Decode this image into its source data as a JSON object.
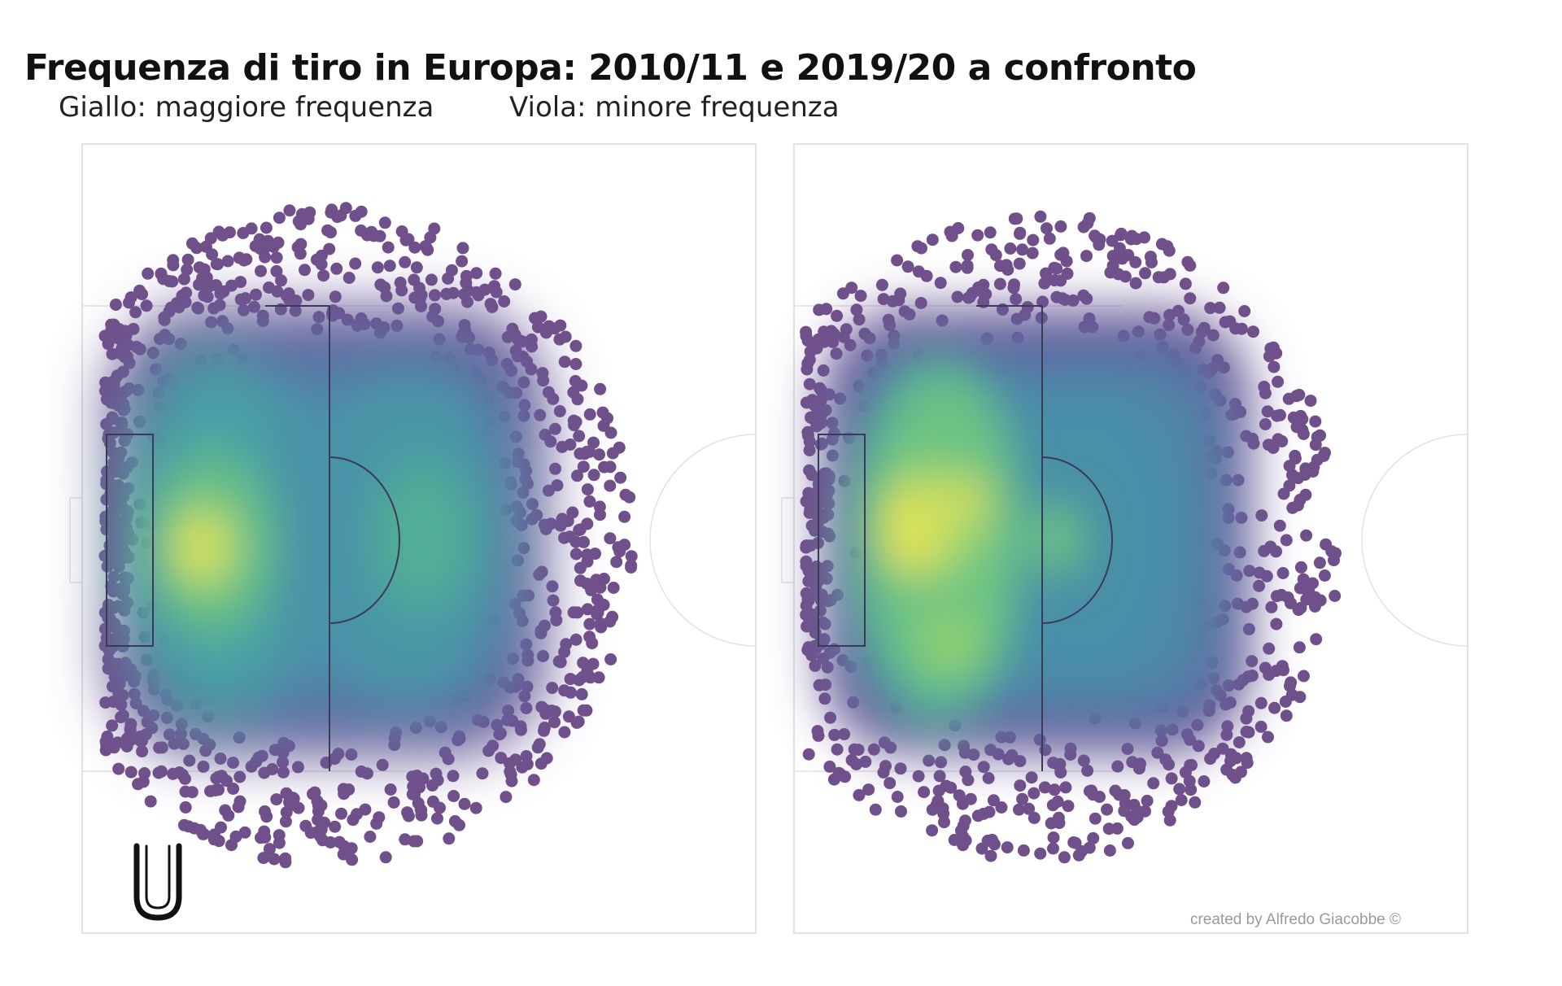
{
  "title": "Frequenza di tiro in Europa: 2010/11 e 2019/20 a confronto",
  "legend": {
    "high": "Giallo: maggiore frequenza",
    "low": "Viola: minore frequenza"
  },
  "credit": "created by Alfredo Giacobbe ©",
  "logo": {
    "icon": "u-monogram-logo",
    "letter": "U"
  },
  "colors": {
    "low": "#70508a",
    "mid_low": "#5c6aa8",
    "mid": "#4a9ca7",
    "mid_high": "#5dbb8f",
    "high": "#f0e653",
    "pitch_line": "#3a3a5a",
    "pitch_outline": "#e2e2e2"
  },
  "chart_data": [
    {
      "type": "heatmap",
      "panel": "left",
      "colormap": "viridis",
      "hotspots": [
        {
          "x": 15,
          "y": 50,
          "weight": 1.0
        },
        {
          "x": 18,
          "y": 30,
          "weight": 0.55
        },
        {
          "x": 20,
          "y": 72,
          "weight": 0.55
        },
        {
          "x": 36,
          "y": 50,
          "weight": 0.55
        },
        {
          "x": 28,
          "y": 50,
          "weight": 0.35
        }
      ]
    },
    {
      "type": "heatmap",
      "panel": "right",
      "colormap": "viridis",
      "hotspots": [
        {
          "x": 13,
          "y": 47,
          "weight": 1.0
        },
        {
          "x": 22,
          "y": 46,
          "weight": 0.85
        },
        {
          "x": 19,
          "y": 62,
          "weight": 0.7
        },
        {
          "x": 21,
          "y": 30,
          "weight": 0.55
        },
        {
          "x": 32,
          "y": 50,
          "weight": 0.5
        },
        {
          "x": 40,
          "y": 50,
          "weight": 0.35
        }
      ]
    }
  ]
}
